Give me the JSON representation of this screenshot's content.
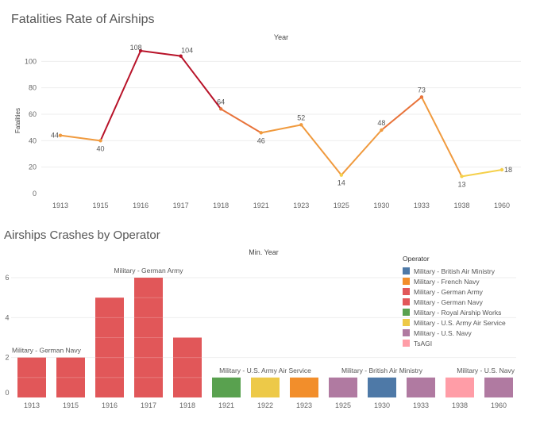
{
  "titles": {
    "line_chart": "Fatalities Rate of Airships",
    "bar_chart": "Airships Crashes by Operator"
  },
  "chart_data": [
    {
      "type": "line",
      "title": "Fatalities Rate of Airships",
      "xlabel": "Year",
      "ylabel": "Fatalities",
      "x": [
        "1913",
        "1915",
        "1916",
        "1917",
        "1918",
        "1921",
        "1923",
        "1925",
        "1930",
        "1933",
        "1938",
        "1960"
      ],
      "values": [
        44,
        40,
        108,
        104,
        64,
        46,
        52,
        14,
        48,
        73,
        13,
        18
      ],
      "ylim": [
        0,
        110
      ],
      "yticks": [
        0,
        20,
        40,
        60,
        80,
        100
      ],
      "grid": true,
      "color_scale": [
        "#f5d04a",
        "#f09a3e",
        "#e8733a",
        "#b81329"
      ]
    },
    {
      "type": "bar",
      "title": "Airships Crashes by Operator",
      "xlabel": "Min. Year",
      "ylabel": "",
      "categories": [
        "1913",
        "1915",
        "1916",
        "1917",
        "1918",
        "1921",
        "1922",
        "1923",
        "1925",
        "1930",
        "1933",
        "1938",
        "1960"
      ],
      "values": [
        2,
        2,
        5,
        6,
        3,
        1,
        1,
        1,
        1,
        1,
        1,
        1,
        1
      ],
      "operators": [
        "Military - German Navy",
        "Military - German Navy",
        "Military - German Army",
        "Military - German Army",
        "Military - German Army",
        "Military - Royal Airship Works",
        "Military - U.S. Army Air Service",
        "Military - French Navy",
        "Military - U.S. Navy",
        "Military - British Air Ministry",
        "Military - U.S. Navy",
        "TsAGI",
        "Military - U.S. Navy"
      ],
      "ylim": [
        0,
        6.4
      ],
      "yticks": [
        0,
        2,
        4,
        6
      ],
      "annotations": [
        {
          "text": "Military - German Navy",
          "index": 0
        },
        {
          "text": "Military - German Army",
          "index": 3
        },
        {
          "text": "Military - U.S. Army Air Service",
          "index": 6
        },
        {
          "text": "Military - British Air Ministry",
          "index": 9
        },
        {
          "text": "Military - U.S. Navy",
          "index": 12
        }
      ],
      "legend": {
        "title": "Operator",
        "position": "right",
        "items": [
          {
            "name": "Military - British Air Ministry",
            "color": "#4e79a7"
          },
          {
            "name": "Military - French Navy",
            "color": "#f28e2b"
          },
          {
            "name": "Military - German Army",
            "color": "#e15759"
          },
          {
            "name": "Military - German Navy",
            "color": "#e15759"
          },
          {
            "name": "Military - Royal Airship Works",
            "color": "#59a14f"
          },
          {
            "name": "Military - U.S. Army Air Service",
            "color": "#edc948"
          },
          {
            "name": "Military - U.S. Navy",
            "color": "#b07aa1"
          },
          {
            "name": "TsAGI",
            "color": "#ff9da7"
          }
        ]
      }
    }
  ]
}
